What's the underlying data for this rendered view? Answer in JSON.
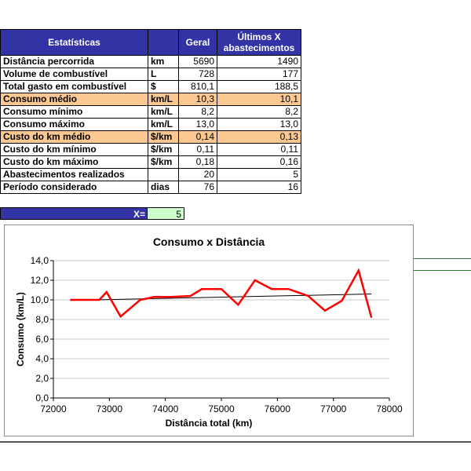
{
  "table": {
    "header": {
      "label": "Estatísticas",
      "unit": "",
      "geral": "Geral",
      "ultimos_line1": "Últimos X",
      "ultimos_line2": "abastecimentos"
    },
    "rows": [
      {
        "label": "Distância percorrida",
        "unit": "km",
        "geral": "5690",
        "ultimos": "1490",
        "highlight": false
      },
      {
        "label": "Volume de combustível",
        "unit": "L",
        "geral": "728",
        "ultimos": "177",
        "highlight": false
      },
      {
        "label": "Total gasto em combustível",
        "unit": "$",
        "geral": "810,1",
        "ultimos": "188,5",
        "highlight": false
      },
      {
        "label": "Consumo médio",
        "unit": "km/L",
        "geral": "10,3",
        "ultimos": "10,1",
        "highlight": true
      },
      {
        "label": "Consumo mínimo",
        "unit": "km/L",
        "geral": "8,2",
        "ultimos": "8,2",
        "highlight": false
      },
      {
        "label": "Consumo máximo",
        "unit": "km/L",
        "geral": "13,0",
        "ultimos": "13,0",
        "highlight": false
      },
      {
        "label": "Custo do km médio",
        "unit": "$/km",
        "geral": "0,14",
        "ultimos": "0,13",
        "highlight": true
      },
      {
        "label": "Custo do km mínimo",
        "unit": "$/km",
        "geral": "0,11",
        "ultimos": "0,11",
        "highlight": false
      },
      {
        "label": "Custo do km máximo",
        "unit": "$/km",
        "geral": "0,18",
        "ultimos": "0,16",
        "highlight": false
      },
      {
        "label": "Abastecimentos realizados",
        "unit": "",
        "geral": "20",
        "ultimos": "5",
        "highlight": false
      },
      {
        "label": "Período considerado",
        "unit": "dias",
        "geral": "76",
        "ultimos": "16",
        "highlight": false
      }
    ]
  },
  "x_input": {
    "label": "X=",
    "value": "5"
  },
  "colors": {
    "header_bg": "#3333a5",
    "highlight_bg": "#fbc891",
    "input_bg": "#ccffcc",
    "series": "#ff0000",
    "trend": "#000000"
  },
  "chart_data": {
    "type": "line",
    "title": "Consumo x Distância",
    "xlabel": "Distância total (km)",
    "ylabel": "Consumo (km/L)",
    "xlim": [
      72000,
      78000
    ],
    "ylim": [
      0,
      14
    ],
    "x_ticks": [
      72000,
      73000,
      74000,
      75000,
      76000,
      77000,
      78000
    ],
    "x_tick_labels": [
      "72000",
      "73000",
      "74000",
      "75000",
      "76000",
      "77000",
      "78000"
    ],
    "y_ticks": [
      0,
      2,
      4,
      6,
      8,
      10,
      12,
      14
    ],
    "y_tick_labels": [
      "0,0",
      "2,0",
      "4,0",
      "6,0",
      "8,0",
      "10,0",
      "12,0",
      "14,0"
    ],
    "grid": "horizontal",
    "series": [
      {
        "x": [
          72300,
          72820,
          72950,
          73200,
          73550,
          73800,
          74100,
          74450,
          74650,
          75000,
          75300,
          75600,
          75900,
          76200,
          76550,
          76850,
          77150,
          77450,
          77680
        ],
        "y": [
          10.0,
          10.0,
          10.8,
          8.3,
          10.0,
          10.3,
          10.3,
          10.4,
          11.1,
          11.1,
          9.5,
          12.0,
          11.1,
          11.1,
          10.4,
          8.9,
          9.9,
          13.0,
          8.2
        ]
      }
    ],
    "trendline": {
      "x": [
        72300,
        77680
      ],
      "y": [
        9.95,
        10.6
      ]
    }
  }
}
